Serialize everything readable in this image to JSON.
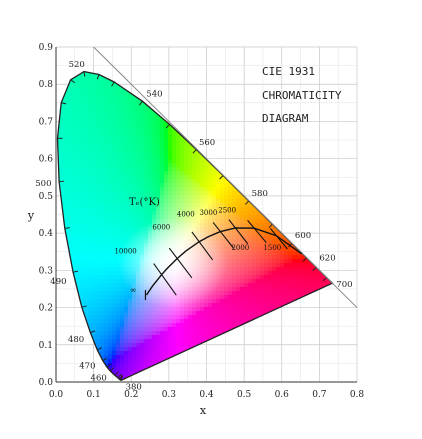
{
  "title_lines": [
    "CIE 1931",
    "CHROMATICITY",
    "DIAGRAM"
  ],
  "axis": {
    "xlabel": "x",
    "ylabel": "y",
    "xlim": [
      0.0,
      0.8
    ],
    "ylim": [
      0.0,
      0.9
    ],
    "x_ticks": [
      "0.0",
      "0.1",
      "0.2",
      "0.3",
      "0.4",
      "0.5",
      "0.6",
      "0.7",
      "0.8"
    ],
    "y_ticks": [
      "0.0",
      "0.1",
      "0.2",
      "0.3",
      "0.4",
      "0.5",
      "0.6",
      "0.7",
      "0.8",
      "0.9"
    ]
  },
  "wavelength_labels": [
    "380",
    "460",
    "470",
    "480",
    "490",
    "500",
    "520",
    "540",
    "560",
    "580",
    "600",
    "620",
    "700"
  ],
  "planckian": {
    "label": "Tₑ(°K)",
    "temps": [
      "10000",
      "6000",
      "4000",
      "3000",
      "2500",
      "2000",
      "1500",
      "∞"
    ]
  },
  "colors": {
    "grid": "#c8c8c8",
    "axis": "#333333",
    "locus_outline": "#222222",
    "planckian": "#111111",
    "title_text": "#222222"
  }
}
